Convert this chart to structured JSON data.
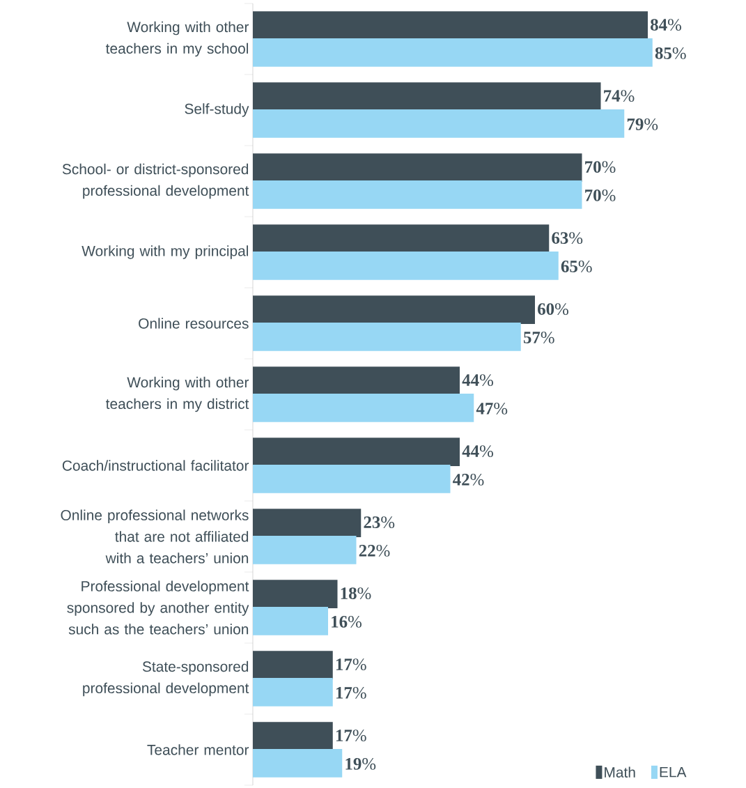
{
  "chart_data": {
    "type": "bar",
    "orientation": "horizontal",
    "categories": [
      "Working with other teachers in my school",
      "Self-study",
      "School- or district-sponsored professional development",
      "Working with my principal",
      "Online resources",
      "Working with other teachers in my district",
      "Coach/instructional facilitator",
      "Online professional networks that are not affiliated with a teachers’ union",
      "Professional development sponsored by another entity such as the teachers’ union",
      "State-sponsored professional development",
      "Teacher mentor"
    ],
    "series": [
      {
        "name": "Math",
        "color": "#3f4f58",
        "values": [
          84,
          74,
          70,
          63,
          60,
          44,
          44,
          23,
          18,
          17,
          17
        ],
        "value_labels": [
          "**84**%",
          "**74**%",
          "**70**%",
          "**63**%",
          "**60**%",
          "**44**%",
          "**44**%",
          "**23**%",
          "**18**%",
          "**17**%",
          "**17**%"
        ]
      },
      {
        "name": "ELA",
        "color": "#97d7f4",
        "values": [
          85,
          79,
          70,
          65,
          57,
          47,
          42,
          22,
          16,
          17,
          19
        ],
        "value_labels": [
          "**85**%",
          "**79**%",
          "**70**%",
          "**65**%",
          "**57**%",
          "**47**%",
          "**42**%",
          "**22**%",
          "**16**%",
          "**17**%",
          "**19**%"
        ]
      }
    ],
    "legend": "bottom right"
  }
}
